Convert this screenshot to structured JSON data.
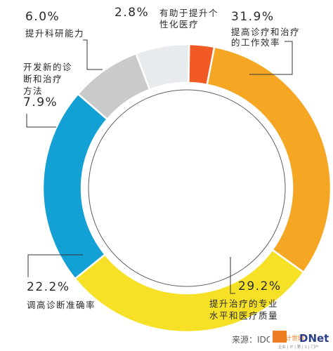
{
  "chart_data": {
    "type": "pie",
    "style": "donut",
    "slices": [
      {
        "value": 31.9,
        "pct_label": "31.9%",
        "label_lines": [
          "提高诊疗和治疗",
          "的工作效率"
        ],
        "color": "#f5a623"
      },
      {
        "value": 29.2,
        "pct_label": "29.2%",
        "label_lines": [
          "提升治疗的专业",
          "水平和医疗质量"
        ],
        "color": "#f7e127"
      },
      {
        "value": 22.2,
        "pct_label": "22.2%",
        "label_lines": [
          "调高诊断准确率"
        ],
        "color": "#13a1d5"
      },
      {
        "value": 7.9,
        "pct_label": "7.9%",
        "label_lines": [
          "开发新的诊",
          "断和治疗",
          "方法"
        ],
        "color": "#c9cacc"
      },
      {
        "value": 6.0,
        "pct_label": "6.0%",
        "label_lines": [
          "提升科研能力"
        ],
        "color": "#e8ebee"
      },
      {
        "value": 2.8,
        "pct_label": "2.8%",
        "label_lines": [
          "有助于提升个",
          "性化医疗"
        ],
        "color": "#f15a24"
      }
    ]
  },
  "source": "来源：IDC",
  "watermark": {
    "brand": "DNet",
    "logo_text": "计世网",
    "tagline": "企业 | IT | 第 | 1 | 门户"
  }
}
